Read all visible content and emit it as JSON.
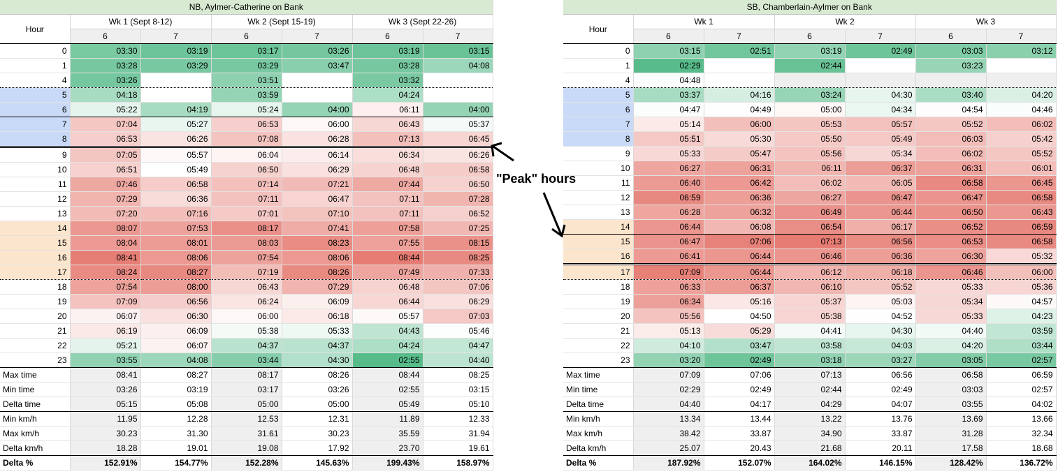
{
  "annotation": "\"Peak\" hours",
  "colors": {
    "title_bg": "#d9ead3",
    "stat_bg": "#efefef",
    "morning_peak": "#c9daf8",
    "evening_peak": "#fce5cd",
    "green_strong": "#57bb8a",
    "red_strong": "#e67c73"
  },
  "tables": [
    {
      "title": "NB, Aylmer-Catherine on Bank",
      "hour_label": "Hour",
      "weeks": [
        "Wk 1 (Sept 8-12)",
        "Wk 2 (Sept 15-19)",
        "Wk 3 (Sept 22-26)"
      ],
      "subcols": [
        "6",
        "7",
        "6",
        "7",
        "6",
        "7"
      ],
      "rows": [
        {
          "hour": "0",
          "vals": [
            "03:30",
            "03:19",
            "03:17",
            "03:26",
            "03:19",
            "03:15"
          ]
        },
        {
          "hour": "1",
          "vals": [
            "03:28",
            "03:29",
            "03:29",
            "03:47",
            "03:28",
            "04:08"
          ]
        },
        {
          "hour": "4",
          "vals": [
            "03:26",
            "",
            "03:51",
            "",
            "03:32",
            ""
          ]
        },
        {
          "hour": "5",
          "vals": [
            "04:18",
            "",
            "03:59",
            "",
            "04:24",
            ""
          ]
        },
        {
          "hour": "6",
          "vals": [
            "05:22",
            "04:19",
            "05:24",
            "04:00",
            "06:11",
            "04:00"
          ]
        },
        {
          "hour": "7",
          "vals": [
            "07:04",
            "05:27",
            "06:53",
            "06:00",
            "06:43",
            "05:37"
          ]
        },
        {
          "hour": "8",
          "vals": [
            "06:53",
            "06:26",
            "07:08",
            "06:28",
            "07:13",
            "06:45"
          ]
        },
        {
          "hour": "9",
          "vals": [
            "07:05",
            "05:57",
            "06:04",
            "06:14",
            "06:34",
            "06:26"
          ]
        },
        {
          "hour": "10",
          "vals": [
            "06:51",
            "05:49",
            "06:50",
            "06:29",
            "06:48",
            "06:58"
          ]
        },
        {
          "hour": "11",
          "vals": [
            "07:46",
            "06:58",
            "07:14",
            "07:21",
            "07:44",
            "06:50"
          ]
        },
        {
          "hour": "12",
          "vals": [
            "07:29",
            "06:36",
            "07:11",
            "06:47",
            "07:11",
            "07:28"
          ]
        },
        {
          "hour": "13",
          "vals": [
            "07:20",
            "07:16",
            "07:01",
            "07:10",
            "07:11",
            "06:52"
          ]
        },
        {
          "hour": "14",
          "vals": [
            "08:07",
            "07:53",
            "08:17",
            "07:41",
            "07:58",
            "07:25"
          ]
        },
        {
          "hour": "15",
          "vals": [
            "08:04",
            "08:01",
            "08:03",
            "08:23",
            "07:55",
            "08:15"
          ]
        },
        {
          "hour": "16",
          "vals": [
            "08:41",
            "08:06",
            "07:54",
            "08:06",
            "08:44",
            "08:25"
          ]
        },
        {
          "hour": "17",
          "vals": [
            "08:24",
            "08:27",
            "07:19",
            "08:26",
            "07:49",
            "07:33"
          ]
        },
        {
          "hour": "18",
          "vals": [
            "07:54",
            "08:00",
            "06:43",
            "07:29",
            "06:48",
            "07:06"
          ]
        },
        {
          "hour": "19",
          "vals": [
            "07:09",
            "06:56",
            "06:24",
            "06:09",
            "06:44",
            "06:29"
          ]
        },
        {
          "hour": "20",
          "vals": [
            "06:07",
            "06:30",
            "06:00",
            "06:18",
            "05:57",
            "07:03"
          ]
        },
        {
          "hour": "21",
          "vals": [
            "06:19",
            "06:09",
            "05:38",
            "05:33",
            "04:43",
            "05:46"
          ]
        },
        {
          "hour": "22",
          "vals": [
            "05:21",
            "06:07",
            "04:37",
            "04:37",
            "04:24",
            "04:47"
          ]
        },
        {
          "hour": "23",
          "vals": [
            "03:55",
            "04:08",
            "03:44",
            "04:30",
            "02:55",
            "04:40"
          ]
        }
      ],
      "stats": [
        {
          "label": "Max time",
          "vals": [
            "08:41",
            "08:27",
            "08:17",
            "08:26",
            "08:44",
            "08:25"
          ]
        },
        {
          "label": "Min time",
          "vals": [
            "03:26",
            "03:19",
            "03:17",
            "03:26",
            "02:55",
            "03:15"
          ]
        },
        {
          "label": "Delta time",
          "vals": [
            "05:15",
            "05:08",
            "05:00",
            "05:00",
            "05:49",
            "05:10"
          ]
        },
        {
          "label": "Min km/h",
          "vals": [
            "11.95",
            "12.28",
            "12.53",
            "12.31",
            "11.89",
            "12.33"
          ]
        },
        {
          "label": "Max km/h",
          "vals": [
            "30.23",
            "31.30",
            "31.61",
            "30.23",
            "35.59",
            "31.94"
          ]
        },
        {
          "label": "Delta km/h",
          "vals": [
            "18.28",
            "19.01",
            "19.08",
            "17.92",
            "23.70",
            "19.61"
          ]
        },
        {
          "label": "Delta %",
          "vals": [
            "152.91%",
            "154.77%",
            "152.28%",
            "145.63%",
            "199.43%",
            "158.97%"
          ]
        }
      ]
    },
    {
      "title": "SB, Chamberlain-Aylmer on Bank",
      "hour_label": "Hour",
      "weeks": [
        "Wk 1",
        "Wk 2",
        "Wk 3"
      ],
      "subcols": [
        "6",
        "7",
        "6",
        "7",
        "6",
        "7"
      ],
      "rows": [
        {
          "hour": "0",
          "vals": [
            "03:15",
            "02:51",
            "03:19",
            "02:49",
            "03:03",
            "03:12"
          ]
        },
        {
          "hour": "1",
          "vals": [
            "02:29",
            "",
            "02:44",
            "",
            "03:23",
            ""
          ]
        },
        {
          "hour": "4",
          "vals": [
            "04:48",
            "",
            "",
            "",
            "",
            ""
          ]
        },
        {
          "hour": "5",
          "vals": [
            "03:37",
            "04:16",
            "03:24",
            "04:30",
            "03:40",
            "04:20"
          ]
        },
        {
          "hour": "6",
          "vals": [
            "04:47",
            "04:49",
            "05:00",
            "04:34",
            "04:54",
            "04:46"
          ]
        },
        {
          "hour": "7",
          "vals": [
            "05:14",
            "06:00",
            "05:53",
            "05:57",
            "05:52",
            "06:02"
          ]
        },
        {
          "hour": "8",
          "vals": [
            "05:51",
            "05:30",
            "05:50",
            "05:49",
            "06:03",
            "05:42"
          ]
        },
        {
          "hour": "9",
          "vals": [
            "05:33",
            "05:47",
            "05:56",
            "05:34",
            "06:02",
            "05:52"
          ]
        },
        {
          "hour": "10",
          "vals": [
            "06:27",
            "06:31",
            "06:11",
            "06:37",
            "06:31",
            "06:01"
          ]
        },
        {
          "hour": "11",
          "vals": [
            "06:40",
            "06:42",
            "06:02",
            "06:05",
            "06:58",
            "06:45"
          ]
        },
        {
          "hour": "12",
          "vals": [
            "06:59",
            "06:36",
            "06:27",
            "06:47",
            "06:47",
            "06:58"
          ]
        },
        {
          "hour": "13",
          "vals": [
            "06:28",
            "06:32",
            "06:49",
            "06:44",
            "06:50",
            "06:43"
          ]
        },
        {
          "hour": "14",
          "vals": [
            "06:44",
            "06:08",
            "06:54",
            "06:17",
            "06:52",
            "06:59"
          ]
        },
        {
          "hour": "15",
          "vals": [
            "06:47",
            "07:06",
            "07:13",
            "06:56",
            "06:53",
            "06:58"
          ]
        },
        {
          "hour": "16",
          "vals": [
            "06:41",
            "06:44",
            "06:46",
            "06:36",
            "06:30",
            "05:32"
          ]
        },
        {
          "hour": "17",
          "vals": [
            "07:09",
            "06:44",
            "06:12",
            "06:18",
            "06:46",
            "06:00"
          ]
        },
        {
          "hour": "18",
          "vals": [
            "06:33",
            "06:37",
            "06:10",
            "05:52",
            "05:33",
            "05:36"
          ]
        },
        {
          "hour": "19",
          "vals": [
            "06:34",
            "05:16",
            "05:37",
            "05:03",
            "05:34",
            "04:57"
          ]
        },
        {
          "hour": "20",
          "vals": [
            "05:56",
            "04:50",
            "05:38",
            "04:52",
            "05:33",
            "04:23"
          ]
        },
        {
          "hour": "21",
          "vals": [
            "05:13",
            "05:29",
            "04:41",
            "04:30",
            "04:40",
            "03:59"
          ]
        },
        {
          "hour": "22",
          "vals": [
            "04:10",
            "03:47",
            "03:58",
            "04:03",
            "04:20",
            "03:44"
          ]
        },
        {
          "hour": "23",
          "vals": [
            "03:20",
            "02:49",
            "03:18",
            "03:27",
            "03:05",
            "02:57"
          ]
        }
      ],
      "stats": [
        {
          "label": "Max time",
          "vals": [
            "07:09",
            "07:06",
            "07:13",
            "06:56",
            "06:58",
            "06:59"
          ]
        },
        {
          "label": "Min time",
          "vals": [
            "02:29",
            "02:49",
            "02:44",
            "02:49",
            "03:03",
            "02:57"
          ]
        },
        {
          "label": "Delta time",
          "vals": [
            "04:40",
            "04:17",
            "04:29",
            "04:07",
            "03:55",
            "04:02"
          ]
        },
        {
          "label": "Min km/h",
          "vals": [
            "13.34",
            "13.44",
            "13.22",
            "13.76",
            "13.69",
            "13.66"
          ]
        },
        {
          "label": "Max km/h",
          "vals": [
            "38.42",
            "33.87",
            "34.90",
            "33.87",
            "31.28",
            "32.34"
          ]
        },
        {
          "label": "Delta km/h",
          "vals": [
            "25.07",
            "20.43",
            "21.68",
            "20.11",
            "17.58",
            "18.68"
          ]
        },
        {
          "label": "Delta %",
          "vals": [
            "187.92%",
            "152.07%",
            "164.02%",
            "146.15%",
            "128.42%",
            "136.72%"
          ]
        }
      ]
    }
  ]
}
